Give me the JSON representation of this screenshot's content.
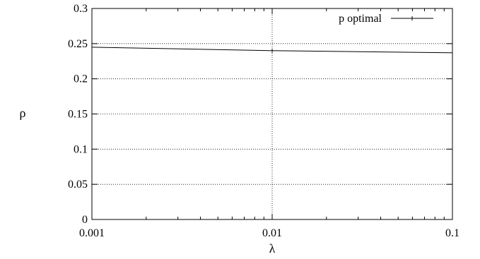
{
  "chart_data": {
    "type": "line",
    "xscale": "log",
    "xlim": [
      0.001,
      0.1
    ],
    "ylim": [
      0,
      0.3
    ],
    "xticks": [
      "0.001",
      "0.01",
      "0.1"
    ],
    "yticks": [
      "0",
      "0.05",
      "0.1",
      "0.15",
      "0.2",
      "0.25",
      "0.3"
    ],
    "xlabel": "λ",
    "ylabel": "ρ",
    "grid": true,
    "legend_position": "top-right",
    "series": [
      {
        "name": "p optimal",
        "color": "#000000",
        "x": [
          0.001,
          0.01,
          0.1
        ],
        "y": [
          0.245,
          0.24,
          0.237
        ]
      }
    ]
  }
}
